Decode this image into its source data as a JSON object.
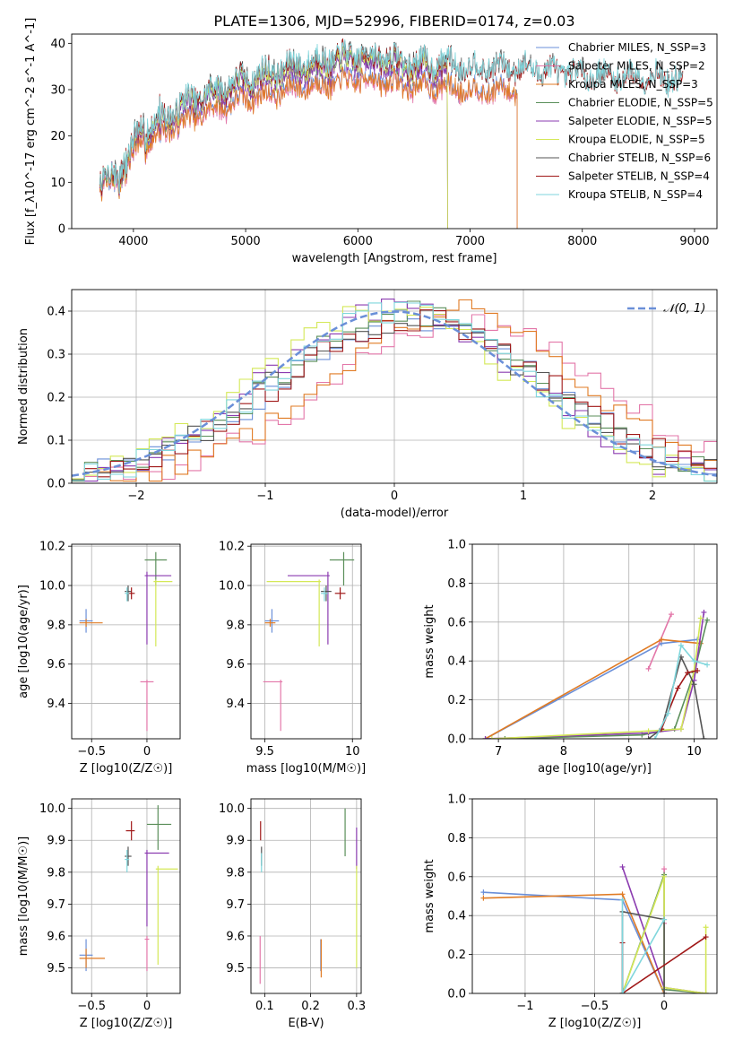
{
  "figure": {
    "title": "PLATE=1306, MJD=52996, FIBERID=0174, z=0.03"
  },
  "colors": {
    "Chabrier MILES": "#6a8fd8",
    "Salpeter MILES": "#e377a9",
    "Kroupa MILES": "#e07b24",
    "Chabrier ELODIE": "#5b8f5a",
    "Salpeter ELODIE": "#8b3bb0",
    "Kroupa ELODIE": "#d4e857",
    "Chabrier STELIB": "#555555",
    "Salpeter STELIB": "#a01818",
    "Kroupa STELIB": "#7fd6dc"
  },
  "chart_data": [
    {
      "id": "spectrum",
      "type": "line",
      "title": "PLATE=1306, MJD=52996, FIBERID=0174, z=0.03",
      "xlabel": "wavelength [Angstrom, rest frame]",
      "ylabel": "Flux [f_λ10^-17 erg cm^-2 s^-1 A^-1]",
      "xlim": [
        3450,
        9200
      ],
      "ylim": [
        0,
        42
      ],
      "xticks": [
        4000,
        5000,
        6000,
        7000,
        8000,
        9000
      ],
      "yticks": [
        0,
        10,
        20,
        30,
        40
      ],
      "grid": false,
      "legend_position": "upper-right",
      "series": [
        {
          "name": "Chabrier MILES",
          "label": "Chabrier MILES, N_SSP=3",
          "lam_end": 7420,
          "scale": 0.86
        },
        {
          "name": "Salpeter MILES",
          "label": "Salpeter MILES, N_SSP=2",
          "lam_end": 7420,
          "scale": 0.84
        },
        {
          "name": "Kroupa MILES",
          "label": "Kroupa MILES, N_SSP=3",
          "lam_end": 7420,
          "scale": 0.85
        },
        {
          "name": "Chabrier ELODIE",
          "label": "Chabrier ELODIE, N_SSP=5",
          "lam_end": 6800,
          "scale": 0.95
        },
        {
          "name": "Salpeter ELODIE",
          "label": "Salpeter ELODIE, N_SSP=5",
          "lam_end": 6800,
          "scale": 0.94
        },
        {
          "name": "Kroupa ELODIE",
          "label": "Kroupa ELODIE, N_SSP=5",
          "lam_end": 6800,
          "scale": 0.97
        },
        {
          "name": "Chabrier STELIB",
          "label": "Chabrier STELIB, N_SSP=6",
          "lam_end": 8900,
          "scale": 1.0
        },
        {
          "name": "Salpeter STELIB",
          "label": "Salpeter STELIB, N_SSP=4",
          "lam_end": 8900,
          "scale": 0.99
        },
        {
          "name": "Kroupa STELIB",
          "label": "Kroupa STELIB, N_SSP=4",
          "lam_end": 8900,
          "scale": 1.0
        }
      ],
      "continuum": {
        "wavelength": [
          3700,
          3900,
          4000,
          4100,
          4300,
          4500,
          4700,
          5000,
          5200,
          5500,
          5800,
          6000,
          6300,
          6500,
          6800,
          7000,
          7400,
          7800,
          8200,
          8600,
          8900
        ],
        "flux": [
          10,
          13,
          19,
          22,
          25,
          28,
          30,
          33,
          34,
          36,
          37,
          38,
          37,
          36,
          36,
          35,
          35,
          34,
          33,
          33,
          32
        ]
      }
    },
    {
      "id": "residuals",
      "type": "histogram",
      "xlabel": "(data-model)/error",
      "ylabel": "Normed distribution",
      "xlim": [
        -2.5,
        2.5
      ],
      "ylim": [
        0,
        0.45
      ],
      "xticks": [
        -2,
        -1,
        0,
        1,
        2
      ],
      "yticks": [
        0.0,
        0.1,
        0.2,
        0.3,
        0.4
      ],
      "grid": true,
      "legend": [
        {
          "name": "𝒩(0, 1)",
          "style": "dashed",
          "color": "#6a8fd8"
        }
      ],
      "legend_position": "upper-right",
      "bins": 50,
      "series": [
        {
          "name": "Chabrier MILES",
          "shift": 0.15,
          "width": 1.05
        },
        {
          "name": "Salpeter MILES",
          "shift": 0.55,
          "width": 1.05
        },
        {
          "name": "Kroupa MILES",
          "shift": 0.45,
          "width": 1.0
        },
        {
          "name": "Chabrier ELODIE",
          "shift": 0.1,
          "width": 1.0
        },
        {
          "name": "Salpeter ELODIE",
          "shift": 0.0,
          "width": 1.0
        },
        {
          "name": "Kroupa ELODIE",
          "shift": -0.05,
          "width": 1.0
        },
        {
          "name": "Chabrier STELIB",
          "shift": 0.1,
          "width": 1.05
        },
        {
          "name": "Salpeter STELIB",
          "shift": 0.15,
          "width": 1.05
        },
        {
          "name": "Kroupa STELIB",
          "shift": 0.05,
          "width": 1.0
        }
      ]
    },
    {
      "id": "age_vs_Z",
      "type": "errorbar",
      "xlabel": "Z [log10(Z/Z☉)]",
      "ylabel": "age [log10(age/yr)]",
      "xlim": [
        -0.68,
        0.3
      ],
      "ylim": [
        9.22,
        10.21
      ],
      "xticks": [
        -0.5,
        0.0
      ],
      "yticks": [
        9.4,
        9.6,
        9.8,
        10.0,
        10.2
      ],
      "grid": true,
      "points": [
        {
          "series": "Chabrier MILES",
          "x": -0.55,
          "y": 9.82,
          "x_lo": 0.06,
          "x_hi": 0.06,
          "y_lo": 0.06,
          "y_hi": 0.06
        },
        {
          "series": "Salpeter MILES",
          "x": 0.0,
          "y": 9.51,
          "x_lo": 0.06,
          "x_hi": 0.06,
          "y_lo": 0.25,
          "y_hi": 0.01
        },
        {
          "series": "Kroupa MILES",
          "x": -0.55,
          "y": 9.81,
          "x_lo": 0.06,
          "x_hi": 0.15,
          "y_lo": 0.02,
          "y_hi": 0.02
        },
        {
          "series": "Chabrier ELODIE",
          "x": 0.08,
          "y": 10.13,
          "x_lo": 0.1,
          "x_hi": 0.1,
          "y_lo": 0.13,
          "y_hi": 0.04
        },
        {
          "series": "Salpeter ELODIE",
          "x": 0.0,
          "y": 10.05,
          "x_lo": 0.02,
          "x_hi": 0.22,
          "y_lo": 0.35,
          "y_hi": 0.02
        },
        {
          "series": "Kroupa ELODIE",
          "x": 0.08,
          "y": 10.02,
          "x_lo": 0.02,
          "x_hi": 0.15,
          "y_lo": 0.33,
          "y_hi": 0.01
        },
        {
          "series": "Chabrier STELIB",
          "x": -0.17,
          "y": 9.97,
          "x_lo": 0.03,
          "x_hi": 0.03,
          "y_lo": 0.05,
          "y_hi": 0.03
        },
        {
          "series": "Salpeter STELIB",
          "x": -0.14,
          "y": 9.96,
          "x_lo": 0.03,
          "x_hi": 0.03,
          "y_lo": 0.03,
          "y_hi": 0.03
        },
        {
          "series": "Kroupa STELIB",
          "x": -0.18,
          "y": 9.96,
          "x_lo": 0.02,
          "x_hi": 0.02,
          "y_lo": 0.04,
          "y_hi": 0.03
        }
      ]
    },
    {
      "id": "age_vs_mass",
      "type": "errorbar",
      "xlabel": "mass [log10(M/M☉)]",
      "ylabel": "",
      "xlim": [
        9.42,
        10.05
      ],
      "ylim": [
        9.22,
        10.21
      ],
      "xticks": [
        9.5,
        10.0
      ],
      "yticks": [
        9.4,
        9.6,
        9.8,
        10.0,
        10.2
      ],
      "grid": true,
      "points": [
        {
          "series": "Chabrier MILES",
          "x": 9.54,
          "y": 9.82,
          "x_lo": 0.04,
          "x_hi": 0.04,
          "y_lo": 0.06,
          "y_hi": 0.06
        },
        {
          "series": "Salpeter MILES",
          "x": 9.59,
          "y": 9.51,
          "x_lo": 0.1,
          "x_hi": 0.01,
          "y_lo": 0.25,
          "y_hi": 0.01
        },
        {
          "series": "Kroupa MILES",
          "x": 9.53,
          "y": 9.81,
          "x_lo": 0.03,
          "x_hi": 0.03,
          "y_lo": 0.02,
          "y_hi": 0.02
        },
        {
          "series": "Chabrier ELODIE",
          "x": 9.95,
          "y": 10.13,
          "x_lo": 0.08,
          "x_hi": 0.06,
          "y_lo": 0.13,
          "y_hi": 0.04
        },
        {
          "series": "Salpeter ELODIE",
          "x": 9.86,
          "y": 10.05,
          "x_lo": 0.23,
          "x_hi": 0.01,
          "y_lo": 0.35,
          "y_hi": 0.02
        },
        {
          "series": "Kroupa ELODIE",
          "x": 9.81,
          "y": 10.02,
          "x_lo": 0.3,
          "x_hi": 0.01,
          "y_lo": 0.33,
          "y_hi": 0.01
        },
        {
          "series": "Chabrier STELIB",
          "x": 9.85,
          "y": 9.97,
          "x_lo": 0.03,
          "x_hi": 0.03,
          "y_lo": 0.05,
          "y_hi": 0.03
        },
        {
          "series": "Salpeter STELIB",
          "x": 9.93,
          "y": 9.96,
          "x_lo": 0.03,
          "x_hi": 0.03,
          "y_lo": 0.03,
          "y_hi": 0.03
        },
        {
          "series": "Kroupa STELIB",
          "x": 9.84,
          "y": 9.96,
          "x_lo": 0.02,
          "x_hi": 0.02,
          "y_lo": 0.04,
          "y_hi": 0.03
        }
      ]
    },
    {
      "id": "weight_vs_age",
      "type": "line",
      "xlabel": "age [log10(age/yr)]",
      "ylabel": "mass weight",
      "xlim": [
        6.6,
        10.35
      ],
      "ylim": [
        0,
        1.0
      ],
      "xticks": [
        7,
        8,
        9,
        10
      ],
      "yticks": [
        0.0,
        0.2,
        0.4,
        0.6,
        0.8,
        1.0
      ],
      "grid": true,
      "series": [
        {
          "name": "Chabrier MILES",
          "x": [
            6.8,
            9.5,
            10.05
          ],
          "y": [
            0.0,
            0.49,
            0.51
          ]
        },
        {
          "name": "Salpeter MILES",
          "x": [
            9.3,
            9.65
          ],
          "y": [
            0.36,
            0.64
          ]
        },
        {
          "name": "Kroupa MILES",
          "x": [
            6.8,
            9.5,
            10.1
          ],
          "y": [
            0.0,
            0.51,
            0.49
          ]
        },
        {
          "name": "Chabrier ELODIE",
          "x": [
            7.1,
            9.2,
            9.7,
            10.0,
            10.2
          ],
          "y": [
            0.0,
            0.02,
            0.05,
            0.34,
            0.61
          ]
        },
        {
          "name": "Salpeter ELODIE",
          "x": [
            6.8,
            9.3,
            9.8,
            10.0,
            10.15
          ],
          "y": [
            0.0,
            0.03,
            0.05,
            0.3,
            0.65
          ]
        },
        {
          "name": "Kroupa ELODIE",
          "x": [
            6.9,
            9.3,
            9.8,
            10.0,
            10.1
          ],
          "y": [
            0.0,
            0.04,
            0.05,
            0.35,
            0.62
          ]
        },
        {
          "name": "Chabrier STELIB",
          "x": [
            9.3,
            9.5,
            9.8,
            10.0,
            10.15
          ],
          "y": [
            0.0,
            0.05,
            0.42,
            0.28,
            0.0
          ]
        },
        {
          "name": "Salpeter STELIB",
          "x": [
            9.5,
            9.75,
            9.9,
            10.05
          ],
          "y": [
            0.05,
            0.26,
            0.34,
            0.35
          ]
        },
        {
          "name": "Kroupa STELIB",
          "x": [
            9.4,
            9.6,
            9.8,
            10.0,
            10.2
          ],
          "y": [
            0.0,
            0.13,
            0.48,
            0.4,
            0.38
          ]
        }
      ]
    },
    {
      "id": "mass_vs_Z",
      "type": "errorbar",
      "xlabel": "Z [log10(Z/Z☉)]",
      "ylabel": "mass [log10(M/M☉)]",
      "xlim": [
        -0.68,
        0.3
      ],
      "ylim": [
        9.42,
        10.03
      ],
      "xticks": [
        -0.5,
        0.0
      ],
      "yticks": [
        9.5,
        9.6,
        9.7,
        9.8,
        9.9,
        10.0
      ],
      "grid": true,
      "points": [
        {
          "series": "Chabrier MILES",
          "x": -0.55,
          "y": 9.54,
          "x_lo": 0.06,
          "x_hi": 0.06,
          "y_lo": 0.05,
          "y_hi": 0.05
        },
        {
          "series": "Salpeter MILES",
          "x": 0.0,
          "y": 9.59,
          "x_lo": 0.02,
          "x_hi": 0.02,
          "y_lo": 0.1,
          "y_hi": 0.01
        },
        {
          "series": "Kroupa MILES",
          "x": -0.55,
          "y": 9.53,
          "x_lo": 0.06,
          "x_hi": 0.17,
          "y_lo": 0.03,
          "y_hi": 0.03
        },
        {
          "series": "Chabrier ELODIE",
          "x": 0.1,
          "y": 9.95,
          "x_lo": 0.1,
          "x_hi": 0.12,
          "y_lo": 0.08,
          "y_hi": 0.06
        },
        {
          "series": "Salpeter ELODIE",
          "x": 0.0,
          "y": 9.86,
          "x_lo": 0.02,
          "x_hi": 0.2,
          "y_lo": 0.23,
          "y_hi": 0.01
        },
        {
          "series": "Kroupa ELODIE",
          "x": 0.1,
          "y": 9.81,
          "x_lo": 0.02,
          "x_hi": 0.18,
          "y_lo": 0.3,
          "y_hi": 0.01
        },
        {
          "series": "Chabrier STELIB",
          "x": -0.17,
          "y": 9.85,
          "x_lo": 0.03,
          "x_hi": 0.03,
          "y_lo": 0.03,
          "y_hi": 0.03
        },
        {
          "series": "Salpeter STELIB",
          "x": -0.14,
          "y": 9.93,
          "x_lo": 0.05,
          "x_hi": 0.03,
          "y_lo": 0.03,
          "y_hi": 0.03
        },
        {
          "series": "Kroupa STELIB",
          "x": -0.18,
          "y": 9.84,
          "x_lo": 0.02,
          "x_hi": 0.02,
          "y_lo": 0.04,
          "y_hi": 0.03
        }
      ]
    },
    {
      "id": "mass_vs_ebv",
      "type": "errorbar",
      "xlabel": "E(B-V)",
      "ylabel": "",
      "xlim": [
        0.07,
        0.31
      ],
      "ylim": [
        9.42,
        10.03
      ],
      "xticks": [
        0.1,
        0.2,
        0.3
      ],
      "yticks": [
        9.5,
        9.6,
        9.7,
        9.8,
        9.9,
        10.0
      ],
      "grid": true,
      "points": [
        {
          "series": "Chabrier MILES",
          "x": 0.222,
          "y": 9.54,
          "y_lo": 0.05,
          "y_hi": 0.05
        },
        {
          "series": "Salpeter MILES",
          "x": 0.09,
          "y": 9.52,
          "y_lo": 0.07,
          "y_hi": 0.08
        },
        {
          "series": "Kroupa MILES",
          "x": 0.223,
          "y": 9.53,
          "y_lo": 0.06,
          "y_hi": 0.06
        },
        {
          "series": "Chabrier ELODIE",
          "x": 0.275,
          "y": 9.93,
          "y_lo": 0.08,
          "y_hi": 0.07
        },
        {
          "series": "Salpeter ELODIE",
          "x": 0.3,
          "y": 9.86,
          "y_lo": 0.05,
          "y_hi": 0.08
        },
        {
          "series": "Kroupa ELODIE",
          "x": 0.3,
          "y": 9.7,
          "y_lo": 0.2,
          "y_hi": 0.12
        },
        {
          "series": "Chabrier STELIB",
          "x": 0.093,
          "y": 9.85,
          "y_lo": 0.03,
          "y_hi": 0.03
        },
        {
          "series": "Salpeter STELIB",
          "x": 0.091,
          "y": 9.93,
          "y_lo": 0.03,
          "y_hi": 0.03
        },
        {
          "series": "Kroupa STELIB",
          "x": 0.093,
          "y": 9.83,
          "y_lo": 0.03,
          "y_hi": 0.03
        }
      ]
    },
    {
      "id": "weight_vs_Z",
      "type": "line",
      "xlabel": "Z [log10(Z/Z☉)]",
      "ylabel": "mass weight",
      "xlim": [
        -1.38,
        0.38
      ],
      "ylim": [
        0,
        1.0
      ],
      "xticks": [
        -1.0,
        -0.5,
        0.0
      ],
      "yticks": [
        0.0,
        0.2,
        0.4,
        0.6,
        0.8,
        1.0
      ],
      "grid": true,
      "series": [
        {
          "name": "Chabrier MILES",
          "x": [
            -1.3,
            -0.3,
            0.0
          ],
          "y": [
            0.52,
            0.48,
            0.0
          ]
        },
        {
          "name": "Salpeter MILES",
          "x": [
            0.0,
            0.0
          ],
          "y": [
            0.36,
            0.64
          ]
        },
        {
          "name": "Kroupa MILES",
          "x": [
            -1.3,
            -0.3,
            0.0
          ],
          "y": [
            0.49,
            0.51,
            0.0
          ]
        },
        {
          "name": "Chabrier ELODIE",
          "x": [
            -0.3,
            0.0,
            0.0,
            0.3
          ],
          "y": [
            0.0,
            0.61,
            0.02,
            0.0
          ]
        },
        {
          "name": "Salpeter ELODIE",
          "x": [
            -0.3,
            0.0,
            0.3
          ],
          "y": [
            0.65,
            0.03,
            0.0
          ]
        },
        {
          "name": "Kroupa ELODIE",
          "x": [
            -0.3,
            0.0,
            0.0,
            0.3,
            0.3
          ],
          "y": [
            0.0,
            0.6,
            0.03,
            0.0,
            0.34
          ]
        },
        {
          "name": "Chabrier STELIB",
          "x": [
            -0.3,
            -0.3,
            0.0,
            0.0
          ],
          "y": [
            0.0,
            0.42,
            0.38,
            0.0
          ]
        },
        {
          "name": "Salpeter STELIB",
          "x": [
            -0.3,
            -0.3,
            0.3
          ],
          "y": [
            0.26,
            0.0,
            0.29
          ]
        },
        {
          "name": "Kroupa STELIB",
          "x": [
            -0.3,
            -0.3,
            0.0
          ],
          "y": [
            0.48,
            0.0,
            0.38
          ]
        }
      ]
    }
  ]
}
